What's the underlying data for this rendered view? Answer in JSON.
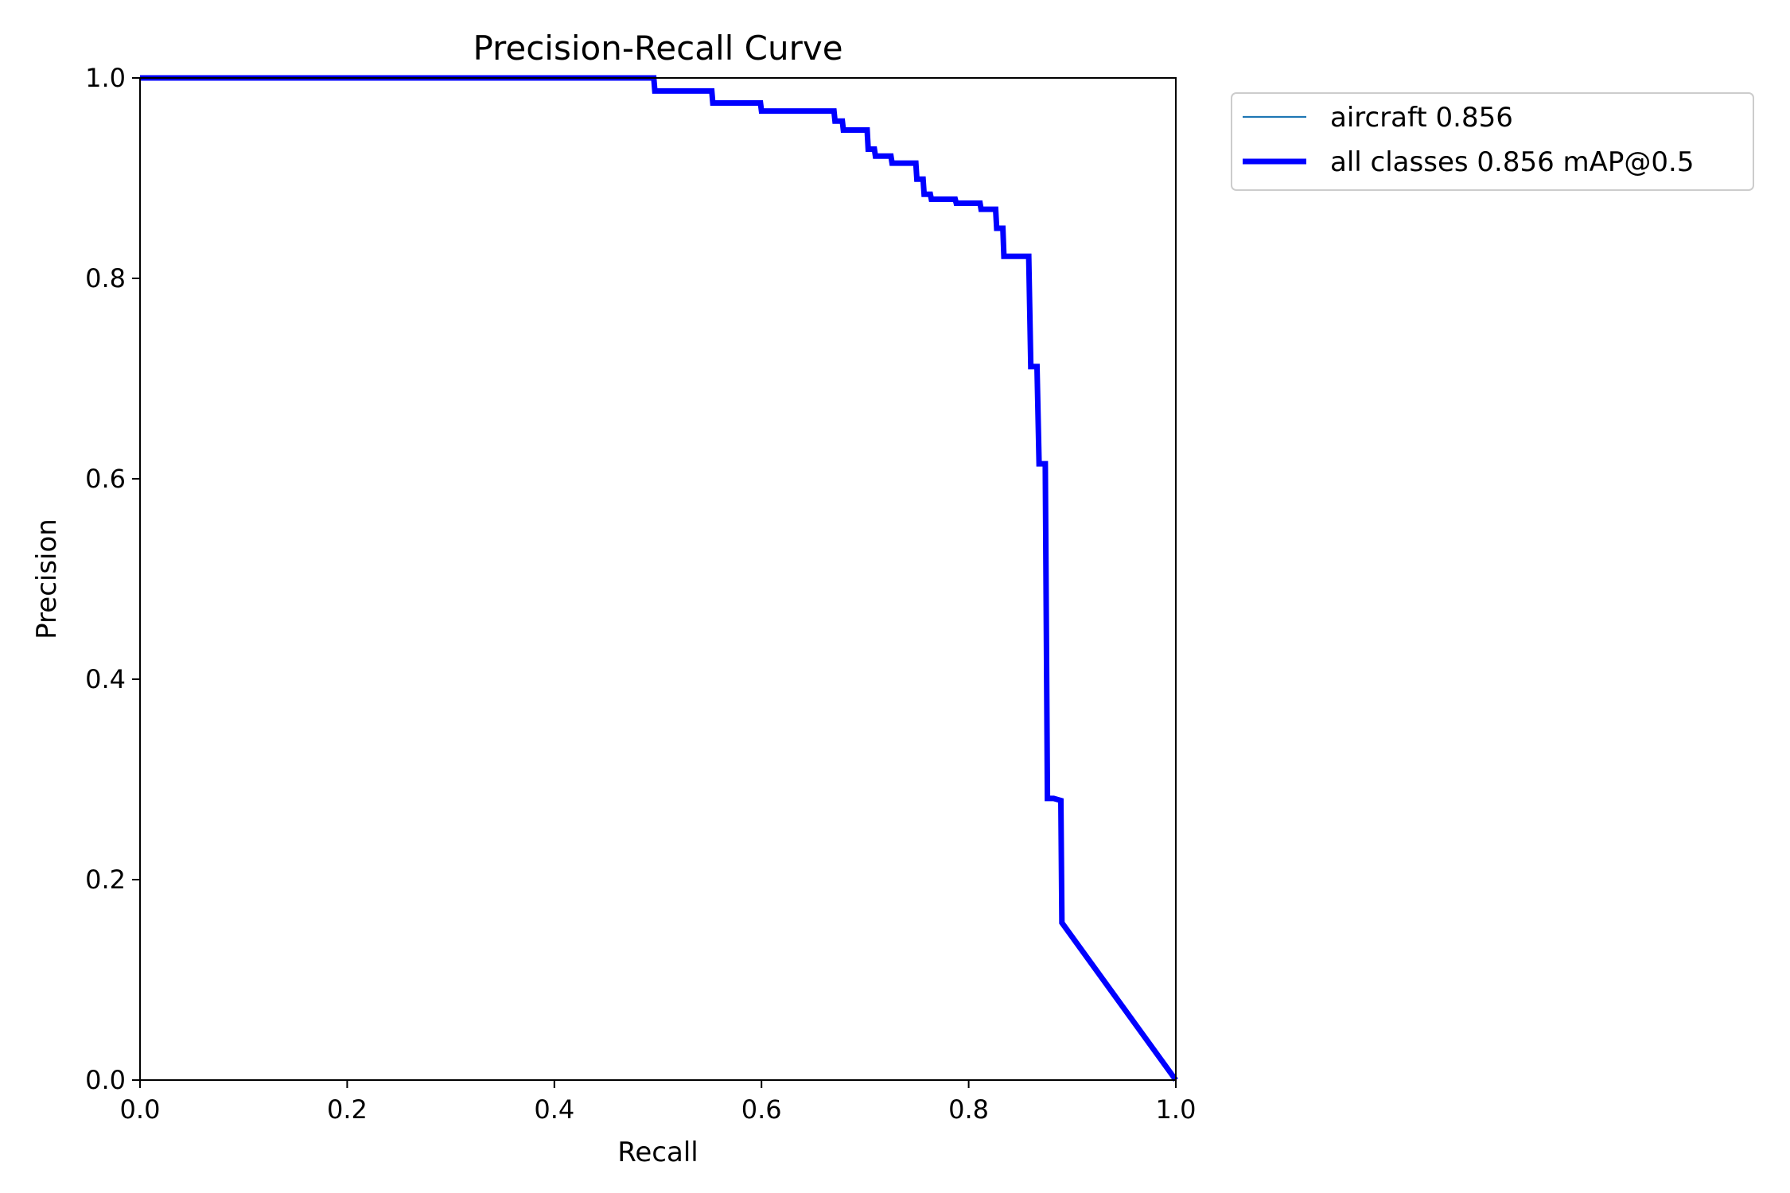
{
  "chart_data": {
    "type": "line",
    "title": "Precision-Recall Curve",
    "xlabel": "Recall",
    "ylabel": "Precision",
    "xlim": [
      0,
      1
    ],
    "ylim": [
      0,
      1
    ],
    "xticks": [
      "0.0",
      "0.2",
      "0.4",
      "0.6",
      "0.8",
      "1.0"
    ],
    "yticks": [
      "0.0",
      "0.2",
      "0.4",
      "0.6",
      "0.8",
      "1.0"
    ],
    "grid": false,
    "legend_position": "outside-top-right",
    "series": [
      {
        "name": "aircraft 0.856",
        "color": "#1f77b4",
        "style": "thin",
        "points": [
          [
            0,
            1
          ],
          [
            0.496,
            1
          ],
          [
            0.497,
            0.987
          ],
          [
            0.552,
            0.987
          ],
          [
            0.553,
            0.975
          ],
          [
            0.599,
            0.975
          ],
          [
            0.6,
            0.967
          ],
          [
            0.67,
            0.967
          ],
          [
            0.671,
            0.957
          ],
          [
            0.678,
            0.957
          ],
          [
            0.679,
            0.948
          ],
          [
            0.702,
            0.948
          ],
          [
            0.703,
            0.929
          ],
          [
            0.709,
            0.929
          ],
          [
            0.71,
            0.922
          ],
          [
            0.725,
            0.922
          ],
          [
            0.726,
            0.915
          ],
          [
            0.749,
            0.915
          ],
          [
            0.75,
            0.899
          ],
          [
            0.756,
            0.899
          ],
          [
            0.757,
            0.884
          ],
          [
            0.763,
            0.884
          ],
          [
            0.764,
            0.879
          ],
          [
            0.787,
            0.879
          ],
          [
            0.788,
            0.875
          ],
          [
            0.811,
            0.875
          ],
          [
            0.812,
            0.869
          ],
          [
            0.826,
            0.869
          ],
          [
            0.827,
            0.85
          ],
          [
            0.833,
            0.85
          ],
          [
            0.834,
            0.822
          ],
          [
            0.858,
            0.822
          ],
          [
            0.86,
            0.712
          ],
          [
            0.866,
            0.712
          ],
          [
            0.868,
            0.615
          ],
          [
            0.874,
            0.615
          ],
          [
            0.876,
            0.281
          ],
          [
            0.882,
            0.281
          ],
          [
            0.889,
            0.279
          ],
          [
            0.89,
            0.157
          ],
          [
            1.0,
            0.0
          ]
        ]
      },
      {
        "name": "all classes 0.856 mAP@0.5",
        "color": "#0000ff",
        "style": "thick",
        "points": [
          [
            0,
            1
          ],
          [
            0.496,
            1
          ],
          [
            0.497,
            0.987
          ],
          [
            0.552,
            0.987
          ],
          [
            0.553,
            0.975
          ],
          [
            0.599,
            0.975
          ],
          [
            0.6,
            0.967
          ],
          [
            0.67,
            0.967
          ],
          [
            0.671,
            0.957
          ],
          [
            0.678,
            0.957
          ],
          [
            0.679,
            0.948
          ],
          [
            0.702,
            0.948
          ],
          [
            0.703,
            0.929
          ],
          [
            0.709,
            0.929
          ],
          [
            0.71,
            0.922
          ],
          [
            0.725,
            0.922
          ],
          [
            0.726,
            0.915
          ],
          [
            0.749,
            0.915
          ],
          [
            0.75,
            0.899
          ],
          [
            0.756,
            0.899
          ],
          [
            0.757,
            0.884
          ],
          [
            0.763,
            0.884
          ],
          [
            0.764,
            0.879
          ],
          [
            0.787,
            0.879
          ],
          [
            0.788,
            0.875
          ],
          [
            0.811,
            0.875
          ],
          [
            0.812,
            0.869
          ],
          [
            0.826,
            0.869
          ],
          [
            0.827,
            0.85
          ],
          [
            0.833,
            0.85
          ],
          [
            0.834,
            0.822
          ],
          [
            0.858,
            0.822
          ],
          [
            0.86,
            0.712
          ],
          [
            0.866,
            0.712
          ],
          [
            0.868,
            0.615
          ],
          [
            0.874,
            0.615
          ],
          [
            0.876,
            0.281
          ],
          [
            0.882,
            0.281
          ],
          [
            0.889,
            0.279
          ],
          [
            0.89,
            0.157
          ],
          [
            1.0,
            0.0
          ]
        ]
      }
    ]
  }
}
